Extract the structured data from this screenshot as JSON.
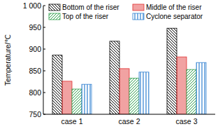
{
  "chart_data": {
    "type": "bar",
    "y_label": "Temperature/℃",
    "categories": [
      "case 1",
      "case 2",
      "case 3"
    ],
    "series": [
      {
        "name": "Bottom of the riser",
        "color": "#000000",
        "values": [
          886,
          918,
          948
        ]
      },
      {
        "name": "Middle of the riser",
        "color": "#e03030",
        "values": [
          826,
          855,
          882
        ]
      },
      {
        "name": "Top of the riser",
        "color": "#2e9e4a",
        "values": [
          808,
          833,
          853
        ]
      },
      {
        "name": "Cyclone separator",
        "color": "#2f7fd0",
        "values": [
          819,
          847,
          869
        ]
      }
    ],
    "ylim": [
      750,
      1000
    ],
    "yticks": [
      750,
      800,
      850,
      900,
      950,
      {
        "value": 1000,
        "label": "1 000"
      }
    ],
    "legend": "top",
    "grid": false
  }
}
